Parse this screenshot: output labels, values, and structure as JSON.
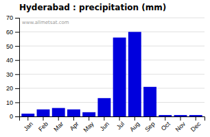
{
  "chart_data": {
    "type": "bar",
    "title": "Hyderabad : precipitation (mm)",
    "categories": [
      "Jan",
      "Feb",
      "Mar",
      "Apr",
      "May",
      "Jun",
      "Jul",
      "Aug",
      "Sep",
      "Oct",
      "Nov",
      "Dec"
    ],
    "values": [
      2,
      5,
      6,
      5,
      3,
      13,
      56,
      60,
      21,
      1,
      1,
      1
    ],
    "color": "#0000dd",
    "ylim": [
      0,
      70
    ],
    "yticks": [
      0,
      10,
      20,
      30,
      40,
      50,
      60,
      70
    ],
    "grid": true,
    "annotations": [
      "www.allmetsat.com"
    ]
  }
}
